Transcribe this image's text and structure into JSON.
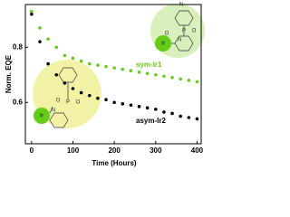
{
  "chart_data": {
    "type": "scatter",
    "x_label": "Time (Hours)",
    "y_label": "Norm. EQE",
    "xlim": [
      -15,
      410
    ],
    "ylim": [
      0.45,
      0.955
    ],
    "xticks": [
      0,
      100,
      200,
      300,
      400
    ],
    "yticks": [
      0.6,
      0.8
    ],
    "x": [
      0,
      20,
      40,
      60,
      80,
      100,
      120,
      140,
      160,
      180,
      200,
      220,
      240,
      260,
      280,
      300,
      320,
      340,
      360,
      380,
      400
    ],
    "series": [
      {
        "name": "sym-Ir1",
        "color": "#66cc1a",
        "values": [
          0.93,
          0.87,
          0.83,
          0.8,
          0.77,
          0.76,
          0.75,
          0.74,
          0.735,
          0.73,
          0.725,
          0.72,
          0.715,
          0.71,
          0.705,
          0.7,
          0.695,
          0.69,
          0.685,
          0.68,
          0.675
        ]
      },
      {
        "name": "asym-Ir2",
        "color": "#000000",
        "values": [
          0.92,
          0.82,
          0.74,
          0.7,
          0.67,
          0.65,
          0.635,
          0.625,
          0.615,
          0.61,
          0.6,
          0.595,
          0.59,
          0.585,
          0.58,
          0.575,
          0.565,
          0.56,
          0.55,
          0.545,
          0.54
        ]
      }
    ],
    "insets": [
      {
        "labels": [
          "Ir",
          "N",
          "O",
          "P",
          "O",
          "N"
        ]
      },
      {
        "labels": [
          "Ir",
          "O",
          "P",
          "O",
          "N"
        ]
      }
    ]
  }
}
